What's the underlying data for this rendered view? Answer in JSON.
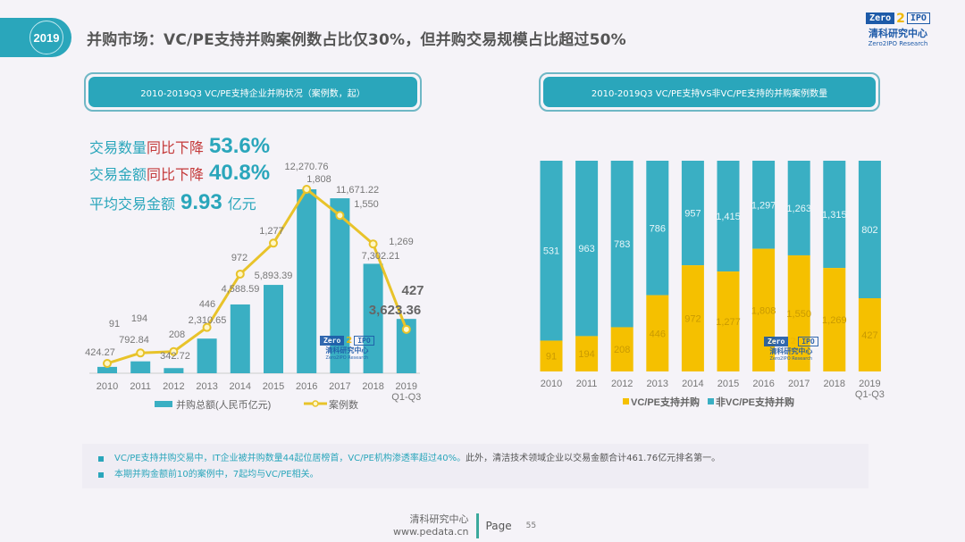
{
  "header": {
    "year": "2019",
    "title": "并购市场：VC/PE支持并购案例数占比仅30%，但并购交易规模占比超过50%",
    "logo": {
      "zero": "Zero",
      "two": "2",
      "ipo": "IPO",
      "cn": "清科研究中心",
      "en": "Zero2IPO Research"
    }
  },
  "left_panel": {
    "header": "2010-2019Q3 VC/PE支持企业并购状况（案例数，起）",
    "kpis": [
      {
        "label": "交易数量",
        "emph": "同比下降",
        "value": "53.6%",
        "suffix": ""
      },
      {
        "label": "交易金额",
        "emph": "同比下降",
        "value": "40.8%",
        "suffix": ""
      },
      {
        "label": "平均交易金额",
        "emph": "",
        "value": "9.93",
        "suffix": "亿元"
      }
    ]
  },
  "right_panel": {
    "header": "2010-2019Q3 VC/PE支持VS非VC/PE支持的并购案例数量"
  },
  "watermark": {
    "zero": "Zero",
    "two": "2",
    "ipo": "IPO",
    "cn": "清科研究中心",
    "en": "Zero2IPO Research"
  },
  "colors": {
    "teal": "#2aa6bb",
    "bar_teal": "#3aafc3",
    "yellow": "#f5c000",
    "red": "#c43a3a",
    "line_yellow": "#e8c32a"
  },
  "chart_data": [
    {
      "type": "bar",
      "title": "2010-2019Q3 VC/PE支持企业并购状况（案例数，起）",
      "categories": [
        "2010",
        "2011",
        "2012",
        "2013",
        "2014",
        "2015",
        "2016",
        "2017",
        "2018",
        "2019\nQ1-Q3"
      ],
      "series": [
        {
          "name": "并购总额(人民币亿元)",
          "type": "bar",
          "values": [
            424.27,
            792.84,
            342.72,
            2310.65,
            4588.59,
            5893.39,
            12270.76,
            11671.22,
            7302.21,
            3623.36
          ],
          "labels": [
            "424.27",
            "792.84",
            "342.72",
            "2,310.65",
            "4,588.59",
            "5,893.39",
            "12,270.76",
            "11,671.22",
            "7,302.21",
            "3,623.36"
          ]
        },
        {
          "name": "案例数",
          "type": "line",
          "values": [
            91,
            194,
            208,
            446,
            972,
            1277,
            1808,
            1550,
            1269,
            427
          ],
          "labels": [
            "91",
            "194",
            "208",
            "446",
            "972",
            "1,277",
            "1,808",
            "1,550",
            "1,269",
            "427"
          ]
        }
      ],
      "legend": "bottom",
      "grid": false
    },
    {
      "type": "bar",
      "stacked": "percent",
      "title": "2010-2019Q3 VC/PE支持VS非VC/PE支持的并购案例数量",
      "categories": [
        "2010",
        "2011",
        "2012",
        "2013",
        "2014",
        "2015",
        "2016",
        "2017",
        "2018",
        "2019\nQ1-Q3"
      ],
      "series": [
        {
          "name": "VC/PE支持并购",
          "values": [
            91,
            194,
            208,
            446,
            972,
            1277,
            1808,
            1550,
            1269,
            427
          ],
          "labels": [
            "91",
            "194",
            "208",
            "446",
            "972",
            "1,277",
            "1,808",
            "1,550",
            "1,269",
            "427"
          ]
        },
        {
          "name": "非VC/PE支持并购",
          "values": [
            531,
            963,
            783,
            786,
            957,
            1415,
            1297,
            1263,
            1315,
            802
          ],
          "labels": [
            "531",
            "963",
            "783",
            "786",
            "957",
            "1,415",
            "1,297",
            "1,263",
            "1,315",
            "802"
          ]
        }
      ],
      "legend": "bottom",
      "grid": false
    }
  ],
  "notes": [
    {
      "highlight": "VC/PE支持并购交易中，IT企业被并购数量44起位居榜首，VC/PE机构渗透率超过40%。",
      "text": "此外，清洁技术领域企业以交易金额合计461.76亿元排名第一。"
    },
    {
      "highlight": "本期并购金额前10的案例中，7起均与VC/PE相关。",
      "text": ""
    }
  ],
  "footer": {
    "org": "清科研究中心",
    "url": "www.pedata.cn",
    "page_label": "Page",
    "page_number": "55"
  }
}
